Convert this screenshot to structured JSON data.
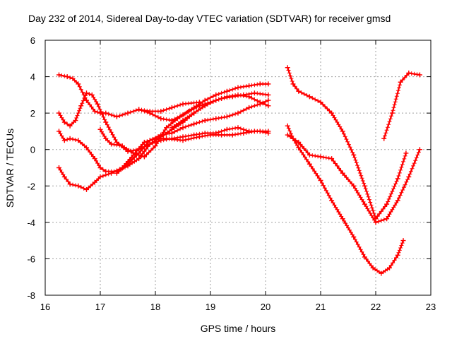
{
  "chart_data": {
    "type": "line",
    "title": "Day 232 of 2014, Sidereal Day-to-day VTEC variation (SDTVAR) for receiver gmsd",
    "xlabel": "GPS time / hours",
    "ylabel": "SDTVAR / TECUs",
    "xlim": [
      16,
      23
    ],
    "ylim": [
      -8,
      6
    ],
    "xticks": [
      16,
      17,
      18,
      19,
      20,
      21,
      22,
      23
    ],
    "yticks": [
      -8,
      -6,
      -4,
      -2,
      0,
      2,
      4,
      6
    ],
    "grid": true,
    "marker": "plus",
    "color": "#ff0000",
    "series": [
      {
        "name": "trace-a",
        "x": [
          16.25,
          16.4,
          16.5,
          16.6,
          16.75,
          16.9,
          17.0,
          17.1,
          17.3,
          17.5,
          17.7,
          17.9,
          18.1,
          18.3,
          18.5,
          18.8
        ],
        "y": [
          4.1,
          4.0,
          3.9,
          3.6,
          2.7,
          2.1,
          2.0,
          2.0,
          1.8,
          2.0,
          2.2,
          2.1,
          2.1,
          2.3,
          2.5,
          2.6
        ]
      },
      {
        "name": "trace-b",
        "x": [
          16.25,
          16.35,
          16.45,
          16.55,
          16.65,
          16.75,
          16.85,
          16.95,
          17.1,
          17.3,
          17.5,
          17.7,
          17.9,
          18.1,
          18.3,
          18.5,
          18.7
        ],
        "y": [
          2.0,
          1.5,
          1.3,
          1.6,
          2.4,
          3.1,
          3.0,
          2.5,
          1.5,
          0.4,
          -0.1,
          0.0,
          0.3,
          0.7,
          1.1,
          1.5,
          2.0
        ]
      },
      {
        "name": "trace-c",
        "x": [
          16.25,
          16.35,
          16.45,
          16.6,
          16.75,
          16.9,
          17.0,
          17.1,
          17.3,
          17.5,
          17.7,
          17.9,
          18.1,
          18.3,
          18.5,
          18.7,
          18.9,
          19.1,
          19.3,
          19.5,
          19.7,
          19.9,
          20.05
        ],
        "y": [
          1.0,
          0.5,
          0.6,
          0.5,
          0.1,
          -0.5,
          -1.0,
          -1.2,
          -1.2,
          -0.9,
          -0.5,
          0.3,
          0.5,
          0.6,
          0.7,
          0.8,
          0.9,
          0.9,
          1.1,
          1.2,
          1.0,
          1.0,
          0.9
        ]
      },
      {
        "name": "trace-d",
        "x": [
          16.25,
          16.35,
          16.45,
          16.6,
          16.75,
          16.9,
          17.0,
          17.2,
          17.4,
          17.6,
          17.8,
          18.0,
          18.2,
          18.5,
          18.8,
          19.0,
          19.2,
          19.4,
          19.6,
          19.8,
          20.05
        ],
        "y": [
          -1.0,
          -1.5,
          -1.9,
          -2.0,
          -2.2,
          -1.8,
          -1.5,
          -1.3,
          -1.0,
          -0.3,
          0.4,
          0.6,
          0.6,
          0.5,
          0.7,
          0.8,
          0.8,
          0.8,
          0.9,
          1.0,
          1.0
        ]
      },
      {
        "name": "trace-e",
        "x": [
          17.0,
          17.1,
          17.2,
          17.4,
          17.6,
          17.8,
          18.0,
          18.2,
          18.4,
          18.6,
          18.8,
          19.0,
          19.2,
          19.4,
          19.6,
          19.8,
          20.05
        ],
        "y": [
          1.1,
          0.6,
          0.3,
          0.2,
          -0.2,
          -0.4,
          0.2,
          1.2,
          1.7,
          2.1,
          2.4,
          2.6,
          2.8,
          2.9,
          3.0,
          3.1,
          3.0
        ]
      },
      {
        "name": "trace-f",
        "x": [
          17.3,
          17.5,
          17.7,
          17.9,
          18.1,
          18.3,
          18.5,
          18.7,
          18.9,
          19.1,
          19.3,
          19.5,
          19.7,
          19.9,
          20.05
        ],
        "y": [
          -1.3,
          -0.8,
          -0.2,
          0.5,
          0.8,
          0.9,
          1.2,
          1.4,
          1.6,
          1.7,
          1.8,
          2.0,
          2.3,
          2.5,
          2.7
        ]
      },
      {
        "name": "trace-g",
        "x": [
          17.7,
          17.9,
          18.1,
          18.3,
          18.5,
          18.7,
          18.9,
          19.1,
          19.3,
          19.5,
          19.7,
          19.9,
          20.05
        ],
        "y": [
          2.2,
          2.0,
          1.7,
          1.6,
          1.9,
          2.3,
          2.7,
          3.0,
          3.2,
          3.4,
          3.5,
          3.6,
          3.6
        ]
      },
      {
        "name": "trace-h",
        "x": [
          18.3,
          18.5,
          18.7,
          18.9,
          19.1,
          19.3,
          19.5,
          19.7,
          19.9,
          20.05
        ],
        "y": [
          1.2,
          1.6,
          2.0,
          2.4,
          2.7,
          2.9,
          3.0,
          2.9,
          2.6,
          2.4
        ]
      },
      {
        "name": "trace-i",
        "x": [
          20.4,
          20.5,
          20.6,
          20.8,
          21.0,
          21.2,
          21.4,
          21.6,
          21.8,
          22.0,
          22.2,
          22.4,
          22.55
        ],
        "y": [
          4.5,
          3.6,
          3.2,
          2.9,
          2.6,
          2.0,
          1.0,
          -0.3,
          -2.0,
          -3.8,
          -3.0,
          -1.6,
          -0.2
        ]
      },
      {
        "name": "trace-j",
        "x": [
          20.4,
          20.5,
          20.6,
          20.8,
          21.0,
          21.2,
          21.4,
          21.6,
          21.8,
          22.0,
          22.2,
          22.4,
          22.6,
          22.8
        ],
        "y": [
          1.3,
          0.6,
          0.4,
          -0.3,
          -0.4,
          -0.5,
          -1.3,
          -2.0,
          -3.0,
          -4.0,
          -3.8,
          -2.8,
          -1.5,
          0.0
        ]
      },
      {
        "name": "trace-k",
        "x": [
          20.4,
          20.5,
          20.6,
          20.8,
          21.0,
          21.2,
          21.4,
          21.6,
          21.8,
          21.95,
          22.1,
          22.25,
          22.4,
          22.5
        ],
        "y": [
          0.8,
          0.6,
          0.1,
          -0.8,
          -1.7,
          -2.8,
          -3.8,
          -4.8,
          -5.9,
          -6.5,
          -6.8,
          -6.5,
          -5.8,
          -5.0
        ]
      },
      {
        "name": "trace-l",
        "x": [
          22.15,
          22.3,
          22.45,
          22.6,
          22.8
        ],
        "y": [
          0.6,
          2.0,
          3.7,
          4.2,
          4.1
        ]
      }
    ]
  }
}
